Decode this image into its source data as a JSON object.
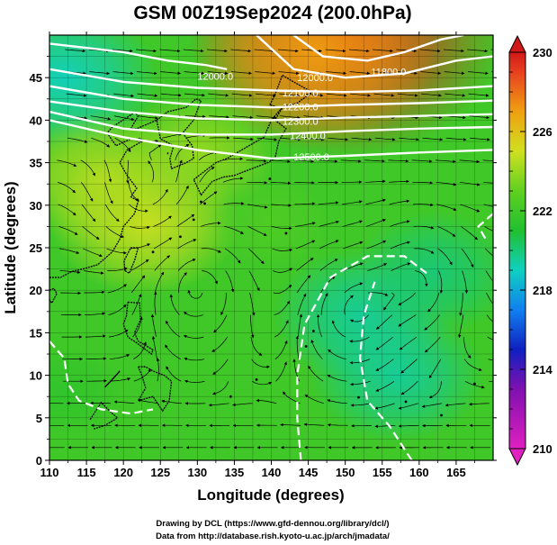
{
  "title": "GSM 00Z19Sep2024 (200.0hPa)",
  "xlabel": "Longitude (degrees)",
  "ylabel": "Latitude  (degrees)",
  "credits": [
    "Drawing by DCL (https://www.gfd-dennou.org/library/dcl/)",
    "Data from http://database.rish.kyoto-u.ac.jp/arch/jmadata/"
  ],
  "chart_data": {
    "type": "heatmap",
    "xlim": [
      110,
      170
    ],
    "ylim": [
      0,
      50
    ],
    "x_ticks": [
      "110",
      "115",
      "120",
      "125",
      "130",
      "135",
      "140",
      "145",
      "150",
      "155",
      "160",
      "165"
    ],
    "y_ticks": [
      "0",
      "5",
      "10",
      "15",
      "20",
      "25",
      "30",
      "35",
      "40",
      "45"
    ],
    "grid": true,
    "colorbar": {
      "min": 210,
      "max": 230,
      "ticks": [
        "210",
        "214",
        "218",
        "222",
        "226",
        "230"
      ],
      "stops": [
        {
          "value": 210,
          "color": "#e020c0"
        },
        {
          "value": 213,
          "color": "#8010b0"
        },
        {
          "value": 215,
          "color": "#1020c0"
        },
        {
          "value": 217,
          "color": "#1080f0"
        },
        {
          "value": 219,
          "color": "#10d0c0"
        },
        {
          "value": 221,
          "color": "#20c030"
        },
        {
          "value": 223,
          "color": "#60d020"
        },
        {
          "value": 225,
          "color": "#d0e020"
        },
        {
          "value": 227,
          "color": "#f0a010"
        },
        {
          "value": 229,
          "color": "#e84020"
        },
        {
          "value": 230,
          "color": "#d01818"
        }
      ]
    },
    "temperature_blobs": [
      {
        "lon": 150,
        "lat": 50,
        "value": 229.5
      },
      {
        "lon": 146,
        "lat": 48,
        "value": 227
      },
      {
        "lon": 112,
        "lat": 45,
        "value": 219
      },
      {
        "lon": 123,
        "lat": 28,
        "value": 225
      },
      {
        "lon": 117,
        "lat": 33,
        "value": 224.5
      },
      {
        "lon": 130,
        "lat": 36,
        "value": 224
      },
      {
        "lon": 152,
        "lat": 17,
        "value": 219.5
      },
      {
        "lon": 157,
        "lat": 10,
        "value": 219.5
      },
      {
        "lon": 162,
        "lat": 22,
        "value": 220
      },
      {
        "lon": 140,
        "lat": 28,
        "value": 222.5
      },
      {
        "lon": 112,
        "lat": 8,
        "value": 221.5
      }
    ],
    "height_contour_labels": [
      "11800.0",
      "12000.0",
      "12000.0",
      "12100.0",
      "12200.0",
      "12300.0",
      "12400.0",
      "12500.0"
    ],
    "height_contours": [
      {
        "value": "11800.0",
        "points": [
          [
            143,
            50
          ],
          [
            147,
            47.5
          ],
          [
            153,
            47
          ],
          [
            158,
            48
          ],
          [
            163,
            49.5
          ],
          [
            166,
            50
          ]
        ]
      },
      {
        "value": "12000.0",
        "points": [
          [
            138,
            50
          ],
          [
            143,
            46
          ],
          [
            150,
            45
          ],
          [
            158,
            45.5
          ],
          [
            165,
            47
          ],
          [
            170,
            47.5
          ]
        ]
      },
      {
        "value": "12000.0",
        "points": [
          [
            110,
            49
          ],
          [
            120,
            48
          ],
          [
            126,
            47
          ],
          [
            131,
            46.5
          ],
          [
            134,
            46
          ]
        ]
      },
      {
        "value": "12100.0",
        "points": [
          [
            110,
            46
          ],
          [
            120,
            44.5
          ],
          [
            130,
            43.8
          ],
          [
            140,
            43.5
          ],
          [
            150,
            43.3
          ],
          [
            160,
            43.5
          ],
          [
            170,
            44
          ]
        ]
      },
      {
        "value": "12200.0",
        "points": [
          [
            110,
            44
          ],
          [
            120,
            42.5
          ],
          [
            130,
            41.8
          ],
          [
            140,
            41.5
          ],
          [
            150,
            41.8
          ],
          [
            160,
            42
          ],
          [
            170,
            42.3
          ]
        ]
      },
      {
        "value": "12300.0",
        "points": [
          [
            110,
            42.2
          ],
          [
            120,
            41
          ],
          [
            130,
            40.2
          ],
          [
            140,
            40
          ],
          [
            150,
            40.3
          ],
          [
            160,
            40.5
          ],
          [
            170,
            40.7
          ]
        ]
      },
      {
        "value": "12400.0",
        "points": [
          [
            110,
            41
          ],
          [
            120,
            39
          ],
          [
            130,
            38.3
          ],
          [
            140,
            38.3
          ],
          [
            150,
            38.7
          ],
          [
            160,
            39
          ],
          [
            170,
            39.2
          ]
        ]
      },
      {
        "value": "12500.0",
        "points": [
          [
            110,
            40
          ],
          [
            120,
            38
          ],
          [
            130,
            36.5
          ],
          [
            140,
            35.5
          ],
          [
            150,
            35.8
          ],
          [
            160,
            36.2
          ],
          [
            170,
            36.5
          ]
        ]
      },
      {
        "value": "12700.0",
        "points": [
          [
            110,
            14
          ],
          [
            112,
            12
          ],
          [
            112.5,
            9
          ],
          [
            114,
            7
          ],
          [
            117,
            6
          ],
          [
            121,
            5.5
          ],
          [
            124,
            6
          ]
        ]
      },
      {
        "value": "12700.0",
        "points": [
          [
            144,
            0
          ],
          [
            143.5,
            5
          ],
          [
            143.5,
            10
          ],
          [
            144.5,
            16
          ],
          [
            148,
            21.5
          ],
          [
            153,
            24
          ],
          [
            158,
            24
          ],
          [
            161,
            22
          ]
        ]
      },
      {
        "value": "12700.0",
        "points": [
          [
            159,
            0
          ],
          [
            156,
            4
          ],
          [
            153,
            7
          ],
          [
            152,
            12
          ],
          [
            152.5,
            17
          ],
          [
            154,
            21
          ]
        ]
      },
      {
        "value": "12700.0",
        "points": [
          [
            170,
            29
          ],
          [
            168,
            27.5
          ],
          [
            169,
            26
          ]
        ]
      }
    ],
    "wind_cells": [
      {
        "lon": 123,
        "lat": 31.5,
        "sense": "ccw"
      },
      {
        "lon": 130,
        "lat": 21,
        "sense": "cw"
      },
      {
        "lon": 151,
        "lat": 18,
        "sense": "cw"
      },
      {
        "lon": 160,
        "lat": 22,
        "sense": "cw"
      }
    ],
    "coastline_color": "#000000",
    "contour_color": "#ffffff"
  }
}
